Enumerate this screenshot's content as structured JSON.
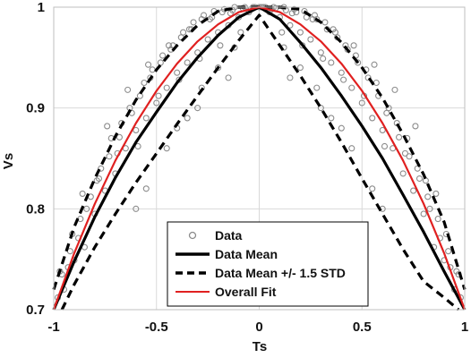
{
  "chart_data": {
    "type": "scatter",
    "title": "",
    "xlabel": "Ts",
    "ylabel": "Vs",
    "xlim": [
      -1,
      1
    ],
    "ylim": [
      0.7,
      1
    ],
    "x_ticks": [
      -1,
      -0.5,
      0,
      0.5,
      1
    ],
    "x_tick_labels": [
      "-1",
      "-0.5",
      "0",
      "0.5",
      "1"
    ],
    "y_ticks": [
      0.7,
      0.8,
      0.9,
      1
    ],
    "y_tick_labels": [
      "0.7",
      "0.8",
      "0.9",
      "1"
    ],
    "grid": {
      "vertical": true,
      "horizontal": true,
      "color": "#d9d9d9"
    },
    "legend": {
      "position": "bottom-center"
    },
    "series": [
      {
        "name": "Data",
        "kind": "scatter",
        "color": "#8c8c8c",
        "marker": "hollow-circle",
        "x": [
          -0.98,
          -0.96,
          -0.95,
          -0.93,
          -0.92,
          -0.9,
          -0.88,
          -0.87,
          -0.85,
          -0.84,
          -0.82,
          -0.8,
          -0.78,
          -0.77,
          -0.75,
          -0.73,
          -0.72,
          -0.7,
          -0.68,
          -0.67,
          -0.65,
          -0.63,
          -0.62,
          -0.6,
          -0.58,
          -0.56,
          -0.55,
          -0.53,
          -0.52,
          -0.5,
          -0.48,
          -0.47,
          -0.45,
          -0.43,
          -0.42,
          -0.4,
          -0.38,
          -0.37,
          -0.35,
          -0.33,
          -0.32,
          -0.3,
          -0.28,
          -0.27,
          -0.25,
          -0.23,
          -0.22,
          -0.2,
          -0.18,
          -0.17,
          -0.15,
          -0.13,
          -0.12,
          -0.1,
          -0.08,
          -0.07,
          -0.05,
          -0.03,
          -0.02,
          0.0,
          0.02,
          0.03,
          0.05,
          0.07,
          0.08,
          0.1,
          0.12,
          0.13,
          0.15,
          0.17,
          0.18,
          0.2,
          0.22,
          0.23,
          0.25,
          0.27,
          0.28,
          0.3,
          0.32,
          0.33,
          0.35,
          0.37,
          0.38,
          0.4,
          0.42,
          0.43,
          0.45,
          0.47,
          0.48,
          0.5,
          0.52,
          0.53,
          0.55,
          0.57,
          0.58,
          0.6,
          0.62,
          0.63,
          0.65,
          0.67,
          0.68,
          0.7,
          0.72,
          0.73,
          0.75,
          0.77,
          0.78,
          0.8,
          0.82,
          0.83,
          0.85,
          0.87,
          0.88,
          0.9,
          0.92,
          0.93,
          0.95,
          0.97,
          0.98,
          -0.97,
          -0.91,
          -0.86,
          -0.79,
          -0.74,
          -0.69,
          -0.64,
          -0.59,
          -0.54,
          -0.49,
          -0.44,
          -0.39,
          -0.34,
          -0.29,
          -0.24,
          -0.19,
          -0.14,
          -0.09,
          -0.04,
          0.01,
          0.06,
          0.11,
          0.16,
          0.21,
          0.26,
          0.31,
          0.36,
          0.41,
          0.46,
          0.51,
          0.56,
          0.61,
          0.66,
          0.71,
          0.76,
          0.81,
          0.86,
          0.91,
          0.96,
          -0.45,
          -0.35,
          -0.28,
          -0.2,
          -0.12,
          0.12,
          0.2,
          0.28,
          0.35,
          0.45,
          -0.6,
          -0.55,
          0.55,
          0.6,
          -0.15,
          0.15,
          -0.3,
          0.3,
          -0.4,
          0.4
        ],
        "y": [
          0.712,
          0.735,
          0.72,
          0.742,
          0.758,
          0.749,
          0.771,
          0.79,
          0.762,
          0.8,
          0.812,
          0.795,
          0.83,
          0.84,
          0.818,
          0.852,
          0.87,
          0.835,
          0.871,
          0.885,
          0.86,
          0.9,
          0.895,
          0.878,
          0.912,
          0.925,
          0.89,
          0.93,
          0.938,
          0.905,
          0.945,
          0.952,
          0.92,
          0.958,
          0.962,
          0.935,
          0.97,
          0.975,
          0.945,
          0.978,
          0.985,
          0.955,
          0.988,
          0.992,
          0.968,
          0.99,
          0.996,
          0.975,
          0.995,
          0.998,
          0.982,
          0.997,
          1.0,
          0.99,
          0.999,
          1.0,
          0.995,
          1.0,
          1.0,
          1.0,
          1.0,
          1.0,
          0.995,
          1.0,
          0.999,
          0.99,
          1.0,
          0.997,
          0.982,
          0.998,
          0.995,
          0.975,
          0.996,
          0.99,
          0.968,
          0.992,
          0.988,
          0.955,
          0.985,
          0.978,
          0.945,
          0.975,
          0.97,
          0.935,
          0.962,
          0.958,
          0.92,
          0.952,
          0.945,
          0.905,
          0.938,
          0.93,
          0.89,
          0.925,
          0.912,
          0.878,
          0.895,
          0.9,
          0.86,
          0.885,
          0.871,
          0.835,
          0.87,
          0.852,
          0.818,
          0.84,
          0.83,
          0.795,
          0.812,
          0.8,
          0.762,
          0.79,
          0.771,
          0.749,
          0.758,
          0.742,
          0.72,
          0.735,
          0.712,
          0.738,
          0.775,
          0.815,
          0.828,
          0.882,
          0.855,
          0.918,
          0.862,
          0.943,
          0.912,
          0.962,
          0.928,
          0.978,
          0.949,
          0.988,
          0.962,
          0.994,
          0.975,
          0.998,
          1.0,
          0.998,
          0.975,
          0.994,
          0.962,
          0.988,
          0.949,
          0.978,
          0.928,
          0.962,
          0.912,
          0.943,
          0.862,
          0.918,
          0.855,
          0.882,
          0.828,
          0.815,
          0.775,
          0.738,
          0.86,
          0.89,
          0.92,
          0.94,
          0.96,
          0.96,
          0.94,
          0.92,
          0.89,
          0.86,
          0.8,
          0.82,
          0.82,
          0.8,
          0.93,
          0.93,
          0.9,
          0.9,
          0.88,
          0.88
        ]
      },
      {
        "name": "Data Mean",
        "kind": "line",
        "color": "#000000",
        "dash": "solid",
        "x": [
          -1,
          -0.9,
          -0.8,
          -0.7,
          -0.6,
          -0.5,
          -0.4,
          -0.3,
          -0.2,
          -0.1,
          0,
          0.1,
          0.2,
          0.3,
          0.4,
          0.5,
          0.6,
          0.7,
          0.8,
          0.9,
          1
        ],
        "y": [
          0.7,
          0.748,
          0.792,
          0.831,
          0.866,
          0.896,
          0.925,
          0.95,
          0.972,
          0.99,
          1.0,
          0.988,
          0.965,
          0.94,
          0.912,
          0.882,
          0.85,
          0.814,
          0.777,
          0.738,
          0.7
        ]
      },
      {
        "name": "Data Mean +/- 1.5 STD",
        "kind": "line",
        "color": "#000000",
        "dash": "dashed",
        "x": [
          -1,
          -0.9,
          -0.8,
          -0.7,
          -0.6,
          -0.5,
          -0.4,
          -0.3,
          -0.2,
          -0.1,
          0,
          0.1,
          0.2,
          0.3,
          0.4,
          0.5,
          0.6,
          0.7,
          0.8,
          0.9,
          1
        ],
        "y": [
          0.72,
          0.782,
          0.83,
          0.872,
          0.908,
          0.938,
          0.962,
          0.982,
          0.996,
          1.0,
          1.0,
          1.0,
          0.998,
          0.985,
          0.965,
          0.94,
          0.91,
          0.874,
          0.834,
          0.787,
          0.72
        ]
      },
      {
        "name": "",
        "kind": "line",
        "color": "#000000",
        "dash": "dashed",
        "x": [
          -0.96,
          -0.9,
          -0.8,
          -0.7,
          -0.6,
          -0.5,
          -0.4,
          -0.3,
          -0.2,
          -0.1,
          0,
          0.1,
          0.2,
          0.3,
          0.4,
          0.5,
          0.6,
          0.7,
          0.8,
          0.9,
          0.97
        ],
        "y": [
          0.7,
          0.725,
          0.762,
          0.795,
          0.826,
          0.855,
          0.884,
          0.912,
          0.94,
          0.967,
          0.992,
          0.962,
          0.932,
          0.9,
          0.866,
          0.83,
          0.795,
          0.76,
          0.728,
          0.712,
          0.7
        ]
      },
      {
        "name": "Overall Fit",
        "kind": "line",
        "color": "#e02020",
        "dash": "solid",
        "x": [
          -1,
          -0.9,
          -0.8,
          -0.7,
          -0.6,
          -0.5,
          -0.4,
          -0.3,
          -0.2,
          -0.1,
          0,
          0.1,
          0.2,
          0.3,
          0.4,
          0.5,
          0.6,
          0.7,
          0.8,
          0.9,
          1
        ],
        "y": [
          0.7,
          0.756,
          0.805,
          0.848,
          0.885,
          0.917,
          0.944,
          0.966,
          0.983,
          0.995,
          1.0,
          0.995,
          0.983,
          0.966,
          0.944,
          0.917,
          0.885,
          0.848,
          0.805,
          0.756,
          0.7
        ]
      }
    ]
  }
}
